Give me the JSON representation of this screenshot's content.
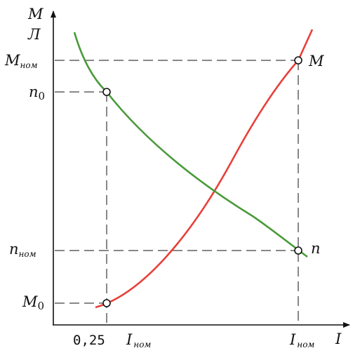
{
  "axes": {
    "y_label_top": "M",
    "y_label_bottom": "Л",
    "x_label": "I"
  },
  "y_ticks": {
    "m_nom": {
      "main": "M",
      "sub": "ном"
    },
    "n0": {
      "main": "n",
      "sub": "0"
    },
    "n_nom": {
      "main": "n",
      "sub": "ном"
    },
    "m0": {
      "main": "M",
      "sub": "0"
    }
  },
  "x_ticks": {
    "quarter": {
      "coef": "0,25",
      "main": "I",
      "sub": "ном"
    },
    "i_nom": {
      "main": "I",
      "sub": "ном"
    }
  },
  "curve_labels": {
    "torque": "M",
    "speed": "n"
  },
  "colors": {
    "torque_curve": "#e8403a",
    "speed_curve": "#4a9a3a",
    "axis": "#111111"
  }
}
